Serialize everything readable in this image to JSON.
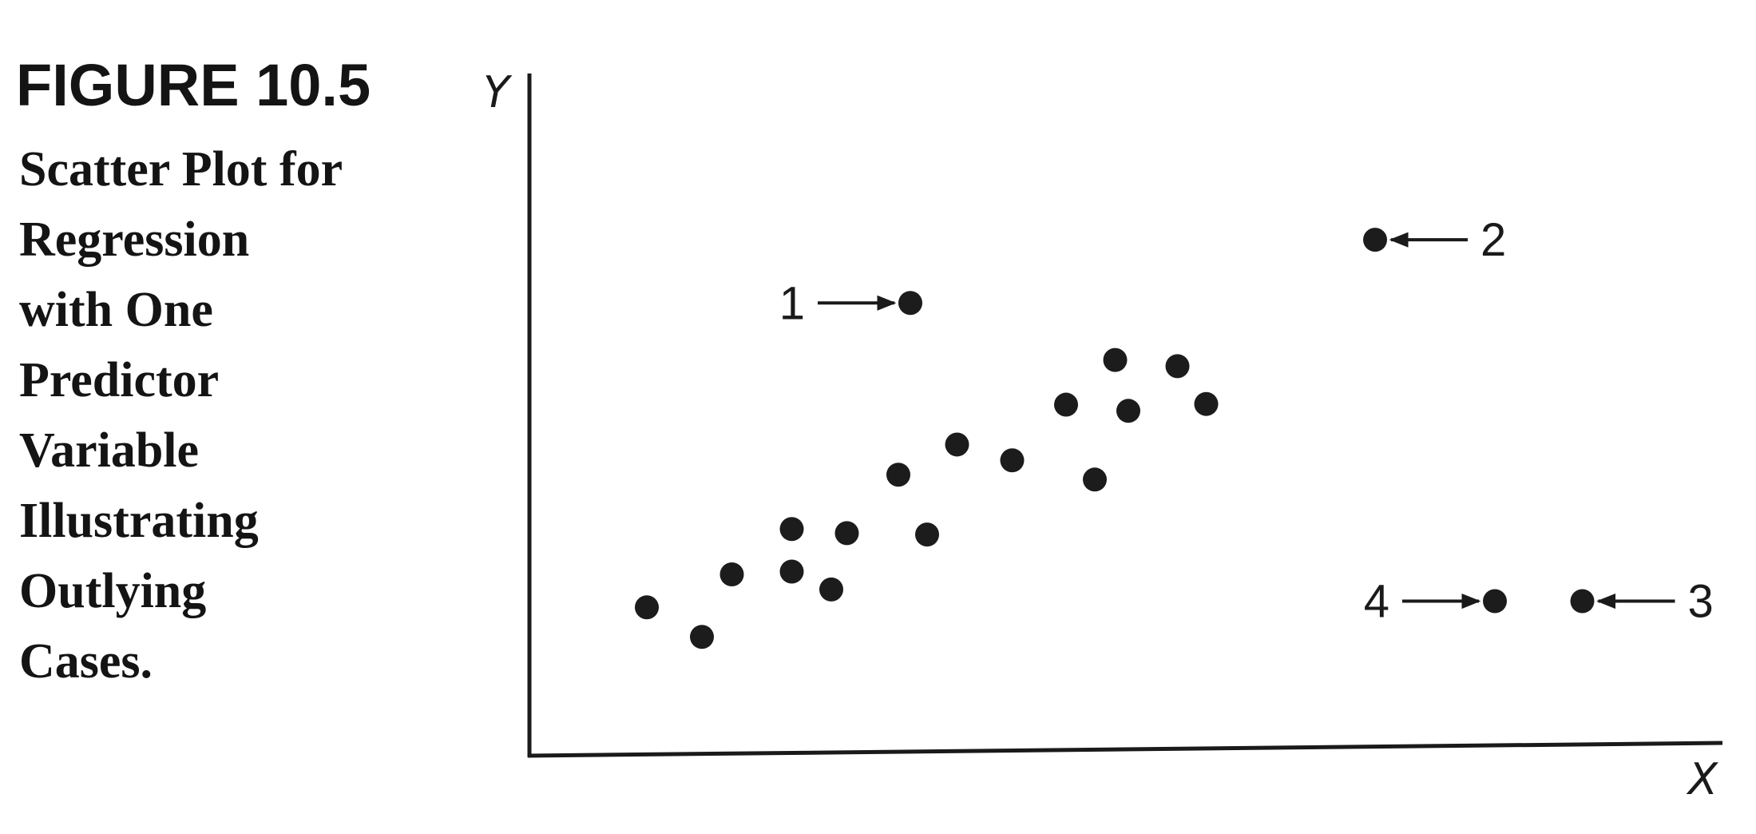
{
  "figure": {
    "label": "FIGURE 10.5",
    "caption_lines": [
      "Scatter Plot for",
      "Regression",
      "with One",
      "Predictor",
      "Variable",
      "Illustrating",
      "Outlying",
      "Cases."
    ]
  },
  "chart_data": {
    "type": "scatter",
    "xlabel": "X",
    "ylabel": "Y",
    "xlim": [
      0,
      100
    ],
    "ylim": [
      0,
      100
    ],
    "grid": false,
    "legend": "none",
    "point_color": "#1c1c1c",
    "points": [
      {
        "x": 9.8,
        "y": 20.9
      },
      {
        "x": 14.4,
        "y": 16.6
      },
      {
        "x": 16.9,
        "y": 25.7
      },
      {
        "x": 21.9,
        "y": 26.1
      },
      {
        "x": 21.9,
        "y": 32.3
      },
      {
        "x": 25.2,
        "y": 23.5
      },
      {
        "x": 26.5,
        "y": 31.7
      },
      {
        "x": 30.8,
        "y": 40.2
      },
      {
        "x": 33.2,
        "y": 31.5
      },
      {
        "x": 35.7,
        "y": 44.6
      },
      {
        "x": 40.3,
        "y": 42.3
      },
      {
        "x": 44.8,
        "y": 50.4
      },
      {
        "x": 47.2,
        "y": 39.5
      },
      {
        "x": 48.9,
        "y": 56.9
      },
      {
        "x": 50.0,
        "y": 49.5
      },
      {
        "x": 54.1,
        "y": 56.0
      },
      {
        "x": 56.5,
        "y": 50.5
      },
      {
        "x": 31.8,
        "y": 65.2
      },
      {
        "x": 70.6,
        "y": 74.4
      },
      {
        "x": 80.6,
        "y": 21.8
      },
      {
        "x": 87.9,
        "y": 21.8
      }
    ],
    "annotations": [
      {
        "text": "1",
        "x": 31.8,
        "y": 65.2,
        "side": "left"
      },
      {
        "text": "2",
        "x": 70.6,
        "y": 74.4,
        "side": "right"
      },
      {
        "text": "3",
        "x": 87.9,
        "y": 21.8,
        "side": "right"
      },
      {
        "text": "4",
        "x": 80.6,
        "y": 21.8,
        "side": "left"
      }
    ]
  }
}
